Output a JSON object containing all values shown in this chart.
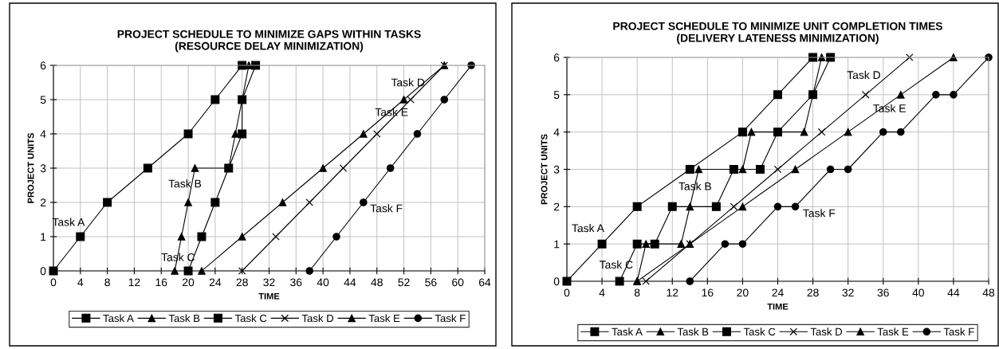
{
  "chart_data": [
    {
      "type": "line",
      "title": "PROJECT SCHEDULE TO MINIMIZE GAPS WITHIN TASKS\n(RESOURCE DELAY MINIMIZATION)",
      "xlabel": "TIME",
      "ylabel": "PROJECT UNITS",
      "xlim": [
        0,
        64
      ],
      "xticks": [
        0,
        4,
        8,
        12,
        16,
        20,
        24,
        28,
        32,
        36,
        40,
        44,
        48,
        52,
        56,
        60,
        64
      ],
      "ylim": [
        0,
        6
      ],
      "yticks": [
        0,
        1,
        2,
        3,
        4,
        5,
        6
      ],
      "grid": true,
      "legend": "bottom",
      "line_style": "solid",
      "series": [
        {
          "name": "Task A",
          "color": "#000000",
          "marker": "square",
          "x": [
            0,
            4,
            8,
            14,
            20,
            24,
            28
          ],
          "values": [
            0,
            1,
            2,
            3,
            4,
            5,
            6
          ]
        },
        {
          "name": "Task B",
          "color": "#000000",
          "marker": "triangle",
          "x": [
            18,
            19,
            20,
            21,
            26,
            27,
            28,
            29
          ],
          "values": [
            0,
            1,
            2,
            3,
            3,
            4,
            5,
            6
          ]
        },
        {
          "name": "Task C",
          "color": "#000000",
          "marker": "square",
          "x": [
            20,
            22,
            24,
            26,
            28,
            28,
            30
          ],
          "values": [
            0,
            1,
            2,
            3,
            4,
            5,
            6
          ]
        },
        {
          "name": "Task D",
          "color": "#000000",
          "marker": "cross",
          "x": [
            28,
            33,
            38,
            43,
            48,
            53,
            58
          ],
          "values": [
            0,
            1,
            2,
            3,
            4,
            5,
            6
          ]
        },
        {
          "name": "Task E",
          "color": "#000000",
          "marker": "triangle",
          "x": [
            22,
            28,
            34,
            40,
            46,
            52,
            58
          ],
          "values": [
            0,
            1,
            2,
            3,
            4,
            5,
            6
          ]
        },
        {
          "name": "Task F",
          "color": "#000000",
          "marker": "circle",
          "x": [
            38,
            42,
            46,
            50,
            54,
            58,
            62
          ],
          "values": [
            0,
            1,
            2,
            3,
            4,
            5,
            6
          ]
        }
      ],
      "annotations": [
        "Task A",
        "Task B",
        "Task C",
        "Task D",
        "Task E",
        "Task F"
      ]
    },
    {
      "type": "line",
      "title": "PROJECT SCHEDULE TO MINIMIZE UNIT COMPLETION TIMES\n(DELIVERY LATENESS MINIMIZATION)",
      "xlabel": "TIME",
      "ylabel": "PROJECT UNITS",
      "xlim": [
        0,
        48
      ],
      "xticks": [
        0,
        4,
        8,
        12,
        16,
        20,
        24,
        28,
        32,
        36,
        40,
        44,
        48
      ],
      "ylim": [
        0,
        6
      ],
      "yticks": [
        0,
        1,
        2,
        3,
        4,
        5,
        6
      ],
      "grid": true,
      "legend": "bottom",
      "line_style": "solid",
      "series": [
        {
          "name": "Task A",
          "color": "#000000",
          "marker": "square",
          "x": [
            0,
            4,
            8,
            14,
            20,
            24,
            28
          ],
          "values": [
            0,
            1,
            2,
            3,
            4,
            5,
            6
          ]
        },
        {
          "name": "Task B",
          "color": "#000000",
          "marker": "triangle",
          "x": [
            8,
            9,
            13,
            14,
            15,
            20,
            21,
            27,
            28,
            29
          ],
          "values": [
            0,
            1,
            1,
            2,
            3,
            3,
            4,
            4,
            5,
            6
          ]
        },
        {
          "name": "Task C",
          "color": "#000000",
          "marker": "square",
          "x": [
            6,
            8,
            10,
            12,
            17,
            19,
            22,
            24,
            28,
            30
          ],
          "values": [
            0,
            1,
            1,
            2,
            2,
            3,
            3,
            4,
            5,
            6
          ]
        },
        {
          "name": "Task D",
          "color": "#000000",
          "marker": "cross",
          "x": [
            9,
            14,
            19,
            24,
            29,
            34,
            39
          ],
          "values": [
            0,
            1,
            2,
            3,
            4,
            5,
            6
          ]
        },
        {
          "name": "Task E",
          "color": "#000000",
          "marker": "triangle",
          "x": [
            8,
            14,
            20,
            26,
            32,
            38,
            44
          ],
          "values": [
            0,
            1,
            2,
            3,
            4,
            5,
            6
          ]
        },
        {
          "name": "Task F",
          "color": "#000000",
          "marker": "circle",
          "x": [
            14,
            18,
            20,
            24,
            26,
            30,
            32,
            36,
            38,
            42,
            44,
            48
          ],
          "values": [
            0,
            1,
            1,
            2,
            2,
            3,
            3,
            4,
            4,
            5,
            5,
            6
          ]
        }
      ],
      "annotations": [
        "Task A",
        "Task B",
        "Task C",
        "Task D",
        "Task E",
        "Task F"
      ]
    }
  ]
}
